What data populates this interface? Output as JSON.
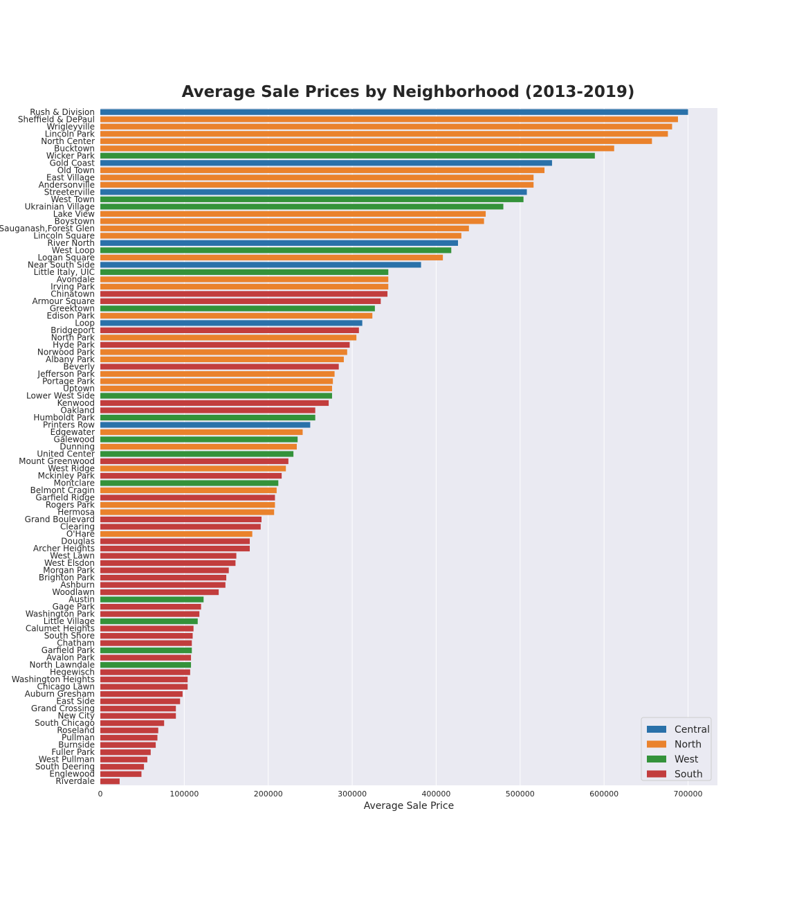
{
  "chart_data": {
    "type": "bar",
    "orientation": "horizontal",
    "title": "Average Sale Prices by Neighborhood (2013-2019)",
    "xlabel": "Average Sale Price",
    "ylabel": "",
    "xlim": [
      0,
      735000
    ],
    "xticks": [
      0,
      100000,
      200000,
      300000,
      400000,
      500000,
      600000,
      700000
    ],
    "grid": true,
    "legend_position": "bottom-right",
    "series_colors": {
      "Central": "#2a71a9",
      "North": "#ea822c",
      "West": "#34923a",
      "South": "#c23d3d"
    },
    "legend": [
      "Central",
      "North",
      "West",
      "South"
    ],
    "bars": [
      {
        "name": "Rush & Division",
        "value": 700000,
        "region": "Central"
      },
      {
        "name": "Sheffield & DePaul",
        "value": 688000,
        "region": "North"
      },
      {
        "name": "Wrigleyville",
        "value": 681000,
        "region": "North"
      },
      {
        "name": "Lincoln Park",
        "value": 676000,
        "region": "North"
      },
      {
        "name": "North Center",
        "value": 657000,
        "region": "North"
      },
      {
        "name": "Bucktown",
        "value": 612000,
        "region": "North"
      },
      {
        "name": "Wicker Park",
        "value": 589000,
        "region": "West"
      },
      {
        "name": "Gold Coast",
        "value": 538000,
        "region": "Central"
      },
      {
        "name": "Old Town",
        "value": 529000,
        "region": "North"
      },
      {
        "name": "East Village",
        "value": 516000,
        "region": "North"
      },
      {
        "name": "Andersonville",
        "value": 516000,
        "region": "North"
      },
      {
        "name": "Streeterville",
        "value": 508000,
        "region": "Central"
      },
      {
        "name": "West Town",
        "value": 504000,
        "region": "West"
      },
      {
        "name": "Ukrainian Village",
        "value": 480000,
        "region": "West"
      },
      {
        "name": "Lake View",
        "value": 459000,
        "region": "North"
      },
      {
        "name": "Boystown",
        "value": 457000,
        "region": "North"
      },
      {
        "name": "Sauganash,Forest Glen",
        "value": 439000,
        "region": "North"
      },
      {
        "name": "Lincoln Square",
        "value": 430000,
        "region": "North"
      },
      {
        "name": "River North",
        "value": 426000,
        "region": "Central"
      },
      {
        "name": "West Loop",
        "value": 418000,
        "region": "West"
      },
      {
        "name": "Logan Square",
        "value": 408000,
        "region": "North"
      },
      {
        "name": "Near South Side",
        "value": 382000,
        "region": "Central"
      },
      {
        "name": "Little Italy, UIC",
        "value": 343000,
        "region": "West"
      },
      {
        "name": "Avondale",
        "value": 343000,
        "region": "North"
      },
      {
        "name": "Irving Park",
        "value": 343000,
        "region": "North"
      },
      {
        "name": "Chinatown",
        "value": 342000,
        "region": "South"
      },
      {
        "name": "Armour Square",
        "value": 334000,
        "region": "South"
      },
      {
        "name": "Greektown",
        "value": 327000,
        "region": "West"
      },
      {
        "name": "Edison Park",
        "value": 324000,
        "region": "North"
      },
      {
        "name": "Loop",
        "value": 312000,
        "region": "Central"
      },
      {
        "name": "Bridgeport",
        "value": 308000,
        "region": "South"
      },
      {
        "name": "North Park",
        "value": 305000,
        "region": "North"
      },
      {
        "name": "Hyde Park",
        "value": 297000,
        "region": "South"
      },
      {
        "name": "Norwood Park",
        "value": 294000,
        "region": "North"
      },
      {
        "name": "Albany Park",
        "value": 290000,
        "region": "North"
      },
      {
        "name": "Beverly",
        "value": 284000,
        "region": "South"
      },
      {
        "name": "Jefferson Park",
        "value": 279000,
        "region": "North"
      },
      {
        "name": "Portage Park",
        "value": 277000,
        "region": "North"
      },
      {
        "name": "Uptown",
        "value": 276000,
        "region": "North"
      },
      {
        "name": "Lower West Side",
        "value": 276000,
        "region": "West"
      },
      {
        "name": "Kenwood",
        "value": 272000,
        "region": "South"
      },
      {
        "name": "Oakland",
        "value": 256000,
        "region": "South"
      },
      {
        "name": "Humboldt Park",
        "value": 256000,
        "region": "West"
      },
      {
        "name": "Printers Row",
        "value": 250000,
        "region": "Central"
      },
      {
        "name": "Edgewater",
        "value": 241000,
        "region": "North"
      },
      {
        "name": "Galewood",
        "value": 235000,
        "region": "West"
      },
      {
        "name": "Dunning",
        "value": 234000,
        "region": "North"
      },
      {
        "name": "United Center",
        "value": 230000,
        "region": "West"
      },
      {
        "name": "Mount Greenwood",
        "value": 224000,
        "region": "South"
      },
      {
        "name": "West Ridge",
        "value": 221000,
        "region": "North"
      },
      {
        "name": "Mckinley Park",
        "value": 216000,
        "region": "South"
      },
      {
        "name": "Montclare",
        "value": 212000,
        "region": "West"
      },
      {
        "name": "Belmont Cragin",
        "value": 210000,
        "region": "North"
      },
      {
        "name": "Garfield Ridge",
        "value": 208000,
        "region": "South"
      },
      {
        "name": "Rogers Park",
        "value": 208000,
        "region": "North"
      },
      {
        "name": "Hermosa",
        "value": 207000,
        "region": "North"
      },
      {
        "name": "Grand Boulevard",
        "value": 192000,
        "region": "South"
      },
      {
        "name": "Clearing",
        "value": 191000,
        "region": "South"
      },
      {
        "name": "O'Hare",
        "value": 181000,
        "region": "North"
      },
      {
        "name": "Douglas",
        "value": 178000,
        "region": "South"
      },
      {
        "name": "Archer Heights",
        "value": 178000,
        "region": "South"
      },
      {
        "name": "West Lawn",
        "value": 162000,
        "region": "South"
      },
      {
        "name": "West Elsdon",
        "value": 161000,
        "region": "South"
      },
      {
        "name": "Morgan Park",
        "value": 153000,
        "region": "South"
      },
      {
        "name": "Brighton Park",
        "value": 150000,
        "region": "South"
      },
      {
        "name": "Ashburn",
        "value": 149000,
        "region": "South"
      },
      {
        "name": "Woodlawn",
        "value": 141000,
        "region": "South"
      },
      {
        "name": "Austin",
        "value": 123000,
        "region": "West"
      },
      {
        "name": "Gage Park",
        "value": 120000,
        "region": "South"
      },
      {
        "name": "Washington Park",
        "value": 118000,
        "region": "South"
      },
      {
        "name": "Little Village",
        "value": 116000,
        "region": "West"
      },
      {
        "name": "Calumet Heights",
        "value": 111000,
        "region": "South"
      },
      {
        "name": "South Shore",
        "value": 110000,
        "region": "South"
      },
      {
        "name": "Chatham",
        "value": 109000,
        "region": "South"
      },
      {
        "name": "Garfield Park",
        "value": 109000,
        "region": "West"
      },
      {
        "name": "Avalon Park",
        "value": 108000,
        "region": "South"
      },
      {
        "name": "North Lawndale",
        "value": 108000,
        "region": "West"
      },
      {
        "name": "Hegewisch",
        "value": 107000,
        "region": "South"
      },
      {
        "name": "Washington Heights",
        "value": 104000,
        "region": "South"
      },
      {
        "name": "Chicago Lawn",
        "value": 104000,
        "region": "South"
      },
      {
        "name": "Auburn Gresham",
        "value": 98000,
        "region": "South"
      },
      {
        "name": "East Side",
        "value": 95000,
        "region": "South"
      },
      {
        "name": "Grand Crossing",
        "value": 90000,
        "region": "South"
      },
      {
        "name": "New City",
        "value": 90000,
        "region": "South"
      },
      {
        "name": "South Chicago",
        "value": 76000,
        "region": "South"
      },
      {
        "name": "Roseland",
        "value": 69000,
        "region": "South"
      },
      {
        "name": "Pullman",
        "value": 68000,
        "region": "South"
      },
      {
        "name": "Burnside",
        "value": 66000,
        "region": "South"
      },
      {
        "name": "Fuller Park",
        "value": 60000,
        "region": "South"
      },
      {
        "name": "West Pullman",
        "value": 56000,
        "region": "South"
      },
      {
        "name": "South Deering",
        "value": 52000,
        "region": "South"
      },
      {
        "name": "Englewood",
        "value": 49000,
        "region": "South"
      },
      {
        "name": "Riverdale",
        "value": 23000,
        "region": "South"
      }
    ]
  }
}
